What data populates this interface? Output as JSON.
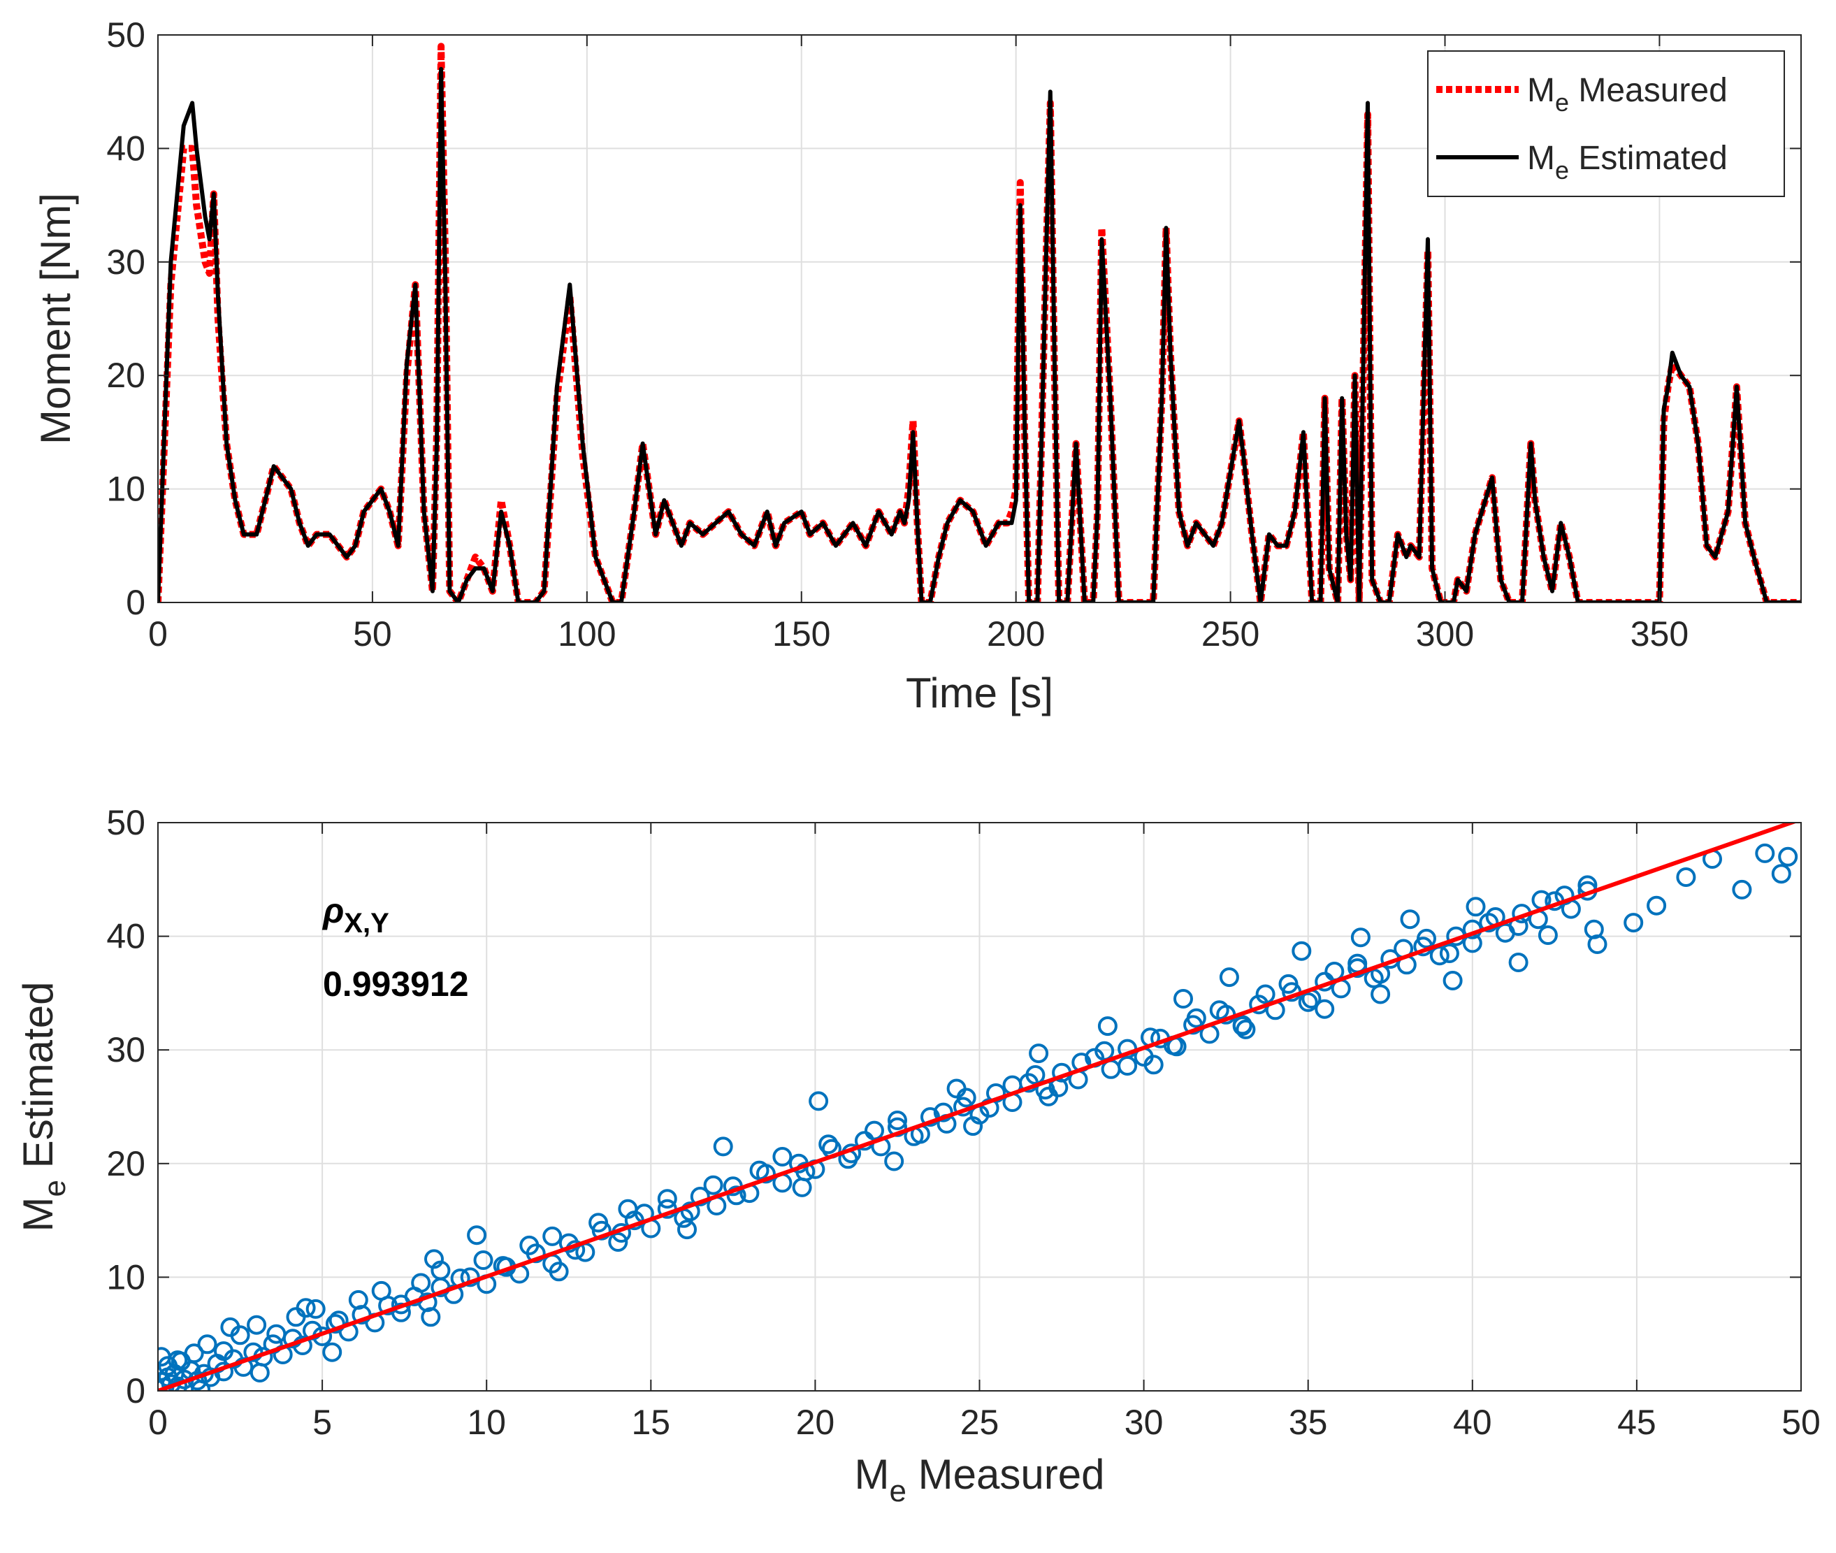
{
  "chart_data": [
    {
      "type": "line",
      "xlabel": "Time [s]",
      "ylabel": "Moment [Nm]",
      "xlim": [
        0,
        383
      ],
      "ylim": [
        0,
        50
      ],
      "xticks": [
        0,
        50,
        100,
        150,
        200,
        250,
        300,
        350
      ],
      "yticks": [
        0,
        10,
        20,
        30,
        40,
        50
      ],
      "grid": true,
      "legend_position": "top-right",
      "legend": [
        {
          "main": "M",
          "sub": "e",
          "rest": " Measured",
          "style": "dotted",
          "color": "#ff0000"
        },
        {
          "main": "M",
          "sub": "e",
          "rest": " Estimated",
          "style": "solid",
          "color": "#000000"
        }
      ],
      "series": [
        {
          "name": "Me Measured",
          "color": "#ff0000",
          "x": [
            0,
            3,
            6,
            8,
            9,
            11,
            12,
            13,
            14,
            16,
            18,
            20,
            23,
            25,
            27,
            29,
            31,
            33,
            35,
            37,
            40,
            42,
            44,
            46,
            48,
            52,
            54,
            56,
            58,
            60,
            62,
            64,
            65,
            66,
            67,
            68,
            70,
            72,
            74,
            76,
            78,
            80,
            82,
            84,
            88,
            90,
            93,
            96,
            99,
            102,
            104,
            106,
            108,
            111,
            113,
            116,
            118,
            120,
            122,
            124,
            127,
            130,
            133,
            136,
            139,
            142,
            144,
            146,
            150,
            152,
            155,
            158,
            160,
            162,
            165,
            168,
            171,
            173,
            174,
            175,
            176,
            177,
            178,
            180,
            182,
            184,
            187,
            190,
            193,
            196,
            198,
            199,
            200,
            201,
            202,
            203,
            205,
            207,
            208,
            209,
            210,
            212,
            214,
            216,
            218,
            219,
            220,
            222,
            224,
            225,
            226,
            228,
            232,
            234,
            235,
            236,
            238,
            240,
            242,
            244,
            246,
            248,
            252,
            253,
            255,
            257,
            259,
            261,
            263,
            265,
            267,
            269,
            271,
            272,
            273,
            275,
            276,
            277,
            278,
            279,
            280,
            282,
            283,
            285,
            287,
            289,
            291,
            292,
            294,
            296,
            297,
            299,
            300,
            302,
            303,
            305,
            307,
            311,
            313,
            315,
            318,
            320,
            321,
            323,
            325,
            327,
            329,
            331,
            333,
            335,
            347,
            350,
            351,
            352,
            353,
            355,
            357,
            359,
            361,
            363,
            366,
            368,
            370,
            372,
            375,
            378,
            383
          ],
          "y": [
            0,
            28,
            40,
            40,
            35,
            30,
            29,
            36,
            25,
            14,
            9,
            6,
            6,
            9,
            12,
            11,
            10,
            7,
            5,
            6,
            6,
            5,
            4,
            5,
            8,
            10,
            8,
            5,
            20,
            28,
            8,
            1,
            15,
            49,
            30,
            1,
            0,
            2,
            4,
            3,
            1,
            9,
            5,
            0,
            0,
            1,
            18,
            27,
            13,
            4,
            2,
            0,
            0,
            8,
            14,
            6,
            9,
            7,
            5,
            7,
            6,
            7,
            8,
            6,
            5,
            8,
            5,
            7,
            8,
            6,
            7,
            5,
            6,
            7,
            5,
            8,
            6,
            8,
            7,
            10,
            16,
            7,
            0,
            0,
            4,
            7,
            9,
            8,
            5,
            7,
            7,
            8,
            10,
            37,
            15,
            0,
            0,
            30,
            44,
            20,
            0,
            0,
            14,
            0,
            0,
            8,
            33,
            18,
            0,
            0,
            0,
            0,
            0,
            18,
            33,
            22,
            8,
            5,
            7,
            6,
            5,
            7,
            16,
            13,
            6,
            0,
            6,
            5,
            5,
            8,
            15,
            0,
            0,
            18,
            3,
            0,
            18,
            6,
            2,
            20,
            0,
            43,
            2,
            0,
            0,
            6,
            4,
            5,
            4,
            31,
            3,
            0,
            0,
            0,
            2,
            1,
            6,
            11,
            2,
            0,
            0,
            14,
            9,
            4,
            1,
            7,
            4,
            0,
            0,
            0,
            0,
            0,
            16,
            19,
            21,
            20,
            19,
            14,
            5,
            4,
            8,
            19,
            7,
            4,
            0,
            0,
            0
          ]
        },
        {
          "name": "Me Estimated",
          "color": "#000000",
          "x": [
            0,
            3,
            6,
            8,
            9,
            11,
            12,
            13,
            14,
            16,
            18,
            20,
            23,
            25,
            27,
            29,
            31,
            33,
            35,
            37,
            40,
            42,
            44,
            46,
            48,
            52,
            54,
            56,
            58,
            60,
            62,
            64,
            65,
            66,
            67,
            68,
            70,
            72,
            74,
            76,
            78,
            80,
            82,
            84,
            88,
            90,
            93,
            96,
            99,
            102,
            104,
            106,
            108,
            111,
            113,
            116,
            118,
            120,
            122,
            124,
            127,
            130,
            133,
            136,
            139,
            142,
            144,
            146,
            150,
            152,
            155,
            158,
            160,
            162,
            165,
            168,
            171,
            173,
            174,
            175,
            176,
            177,
            178,
            180,
            182,
            184,
            187,
            190,
            193,
            196,
            198,
            199,
            200,
            201,
            202,
            203,
            205,
            207,
            208,
            209,
            210,
            212,
            214,
            216,
            218,
            219,
            220,
            222,
            224,
            225,
            226,
            228,
            232,
            234,
            235,
            236,
            238,
            240,
            242,
            244,
            246,
            248,
            252,
            253,
            255,
            257,
            259,
            261,
            263,
            265,
            267,
            269,
            271,
            272,
            273,
            275,
            276,
            277,
            278,
            279,
            280,
            282,
            283,
            285,
            287,
            289,
            291,
            292,
            294,
            296,
            297,
            299,
            300,
            302,
            303,
            305,
            307,
            311,
            313,
            315,
            318,
            320,
            321,
            323,
            325,
            327,
            329,
            331,
            333,
            335,
            347,
            350,
            351,
            352,
            353,
            355,
            357,
            359,
            361,
            363,
            366,
            368,
            370,
            372,
            375,
            378,
            383
          ],
          "y": [
            0,
            30,
            42,
            44,
            40,
            34,
            32,
            36,
            27,
            14,
            9,
            6,
            6,
            9,
            12,
            11,
            10,
            7,
            5,
            6,
            6,
            5,
            4,
            5,
            8,
            10,
            8,
            5,
            21,
            28,
            8,
            1,
            14,
            47,
            28,
            1,
            0,
            2,
            3,
            3,
            1,
            8,
            5,
            0,
            0,
            1,
            19,
            28,
            14,
            4,
            2,
            0,
            0,
            8,
            14,
            6,
            9,
            7,
            5,
            7,
            6,
            7,
            8,
            6,
            5,
            8,
            5,
            7,
            8,
            6,
            7,
            5,
            6,
            7,
            5,
            8,
            6,
            8,
            7,
            9,
            15,
            7,
            0,
            0,
            4,
            7,
            9,
            8,
            5,
            7,
            7,
            7,
            9,
            35,
            16,
            0,
            0,
            30,
            45,
            21,
            0,
            0,
            14,
            0,
            0,
            8,
            32,
            18,
            0,
            0,
            0,
            0,
            0,
            18,
            33,
            22,
            8,
            5,
            7,
            6,
            5,
            7,
            16,
            13,
            6,
            0,
            6,
            5,
            5,
            8,
            15,
            0,
            0,
            18,
            3,
            0,
            18,
            6,
            2,
            20,
            0,
            44,
            2,
            0,
            0,
            6,
            4,
            5,
            4,
            32,
            3,
            0,
            0,
            0,
            2,
            1,
            6,
            11,
            2,
            0,
            0,
            14,
            9,
            4,
            1,
            7,
            4,
            0,
            0,
            0,
            0,
            0,
            17,
            19,
            22,
            20,
            19,
            14,
            5,
            4,
            8,
            19,
            7,
            4,
            0,
            0,
            0
          ]
        }
      ]
    },
    {
      "type": "scatter",
      "xlabel": {
        "main": "M",
        "sub": "e",
        "rest": " Measured"
      },
      "ylabel": {
        "main": "M",
        "sub": "e",
        "rest": " Estimated"
      },
      "xlim": [
        0,
        50
      ],
      "ylim": [
        0,
        50
      ],
      "xticks": [
        0,
        5,
        10,
        15,
        20,
        25,
        30,
        35,
        40,
        45,
        50
      ],
      "yticks": [
        0,
        10,
        20,
        30,
        40,
        50
      ],
      "grid": true,
      "marker": "circle-open",
      "marker_color": "#0072bd",
      "annotation": {
        "symbol": "ρ",
        "subscript": "X,Y",
        "value": "0.993912"
      },
      "fit_line": {
        "color": "#ff0000",
        "x": [
          0,
          50
        ],
        "y": [
          0,
          50.3
        ]
      },
      "x": [
        0.1,
        0.2,
        0.3,
        0.4,
        0.5,
        0.6,
        0.8,
        1.0,
        1.2,
        1.4,
        1.6,
        1.8,
        2.0,
        2.3,
        2.6,
        2.9,
        3.2,
        3.5,
        3.8,
        4.1,
        4.4,
        4.7,
        5.0,
        5.4,
        5.8,
        6.2,
        6.6,
        7.0,
        7.4,
        7.8,
        8.2,
        8.6,
        9.0,
        9.5,
        10.0,
        10.5,
        11.0,
        11.5,
        12.0,
        12.5,
        13.0,
        13.5,
        14.0,
        14.5,
        15.0,
        15.5,
        16.0,
        16.5,
        17.0,
        17.5,
        18.0,
        18.5,
        19.0,
        19.5,
        20.0,
        20.5,
        21.0,
        21.5,
        22.0,
        22.5,
        23.0,
        23.5,
        24.0,
        24.5,
        25.0,
        25.5,
        26.0,
        26.5,
        27.0,
        27.5,
        28.0,
        28.5,
        29.0,
        29.5,
        30.0,
        30.5,
        31.0,
        31.5,
        32.0,
        32.5,
        33.0,
        33.5,
        34.0,
        34.5,
        35.0,
        35.5,
        36.0,
        36.5,
        37.0,
        37.5,
        38.0,
        38.5,
        39.0,
        39.5,
        40.0,
        40.5,
        41.0,
        41.5,
        42.0,
        42.5,
        43.0,
        43.5,
        0.3,
        0.7,
        1.1,
        1.5,
        2.0,
        2.5,
        3.0,
        3.6,
        4.2,
        4.8,
        5.5,
        6.1,
        6.8,
        7.4,
        8.0,
        8.6,
        9.2,
        9.9,
        10.6,
        11.3,
        12.0,
        12.7,
        13.4,
        14.1,
        14.8,
        15.5,
        16.2,
        16.9,
        17.6,
        18.3,
        19.0,
        19.7,
        20.4,
        21.1,
        21.8,
        22.5,
        23.2,
        23.9,
        24.6,
        25.3,
        26.0,
        26.7,
        27.4,
        28.1,
        28.8,
        29.5,
        30.2,
        30.9,
        31.6,
        32.3,
        33.0,
        33.7,
        34.4,
        35.1,
        35.8,
        36.5,
        37.2,
        37.9,
        38.6,
        39.3,
        40.0,
        40.7,
        41.4,
        42.1,
        42.8,
        43.5,
        1.3,
        3.1,
        5.3,
        8.3,
        12.2,
        16.1,
        19.6,
        22.4,
        24.8,
        27.1,
        30.3,
        33.1,
        35.5,
        37.2,
        39.4,
        41.4,
        43.7,
        44.9,
        45.6,
        46.5,
        47.3,
        48.2,
        48.9,
        49.4,
        49.6,
        0.1,
        0.6,
        2.2,
        4.5,
        8.4,
        9.7,
        14.3,
        17.2,
        20.1,
        24.3,
        26.8,
        28.9,
        31.2,
        32.6,
        34.8,
        36.6,
        38.1,
        40.1,
        42.3,
        43.8
      ],
      "y": [
        0.8,
        0.3,
        1.2,
        0.6,
        1.5,
        0.4,
        1.0,
        1.8,
        0.9,
        1.5,
        1.2,
        2.4,
        1.7,
        2.8,
        2.1,
        3.4,
        3.0,
        4.1,
        3.2,
        4.6,
        4.0,
        5.3,
        4.8,
        5.9,
        5.2,
        6.7,
        6.0,
        7.5,
        6.9,
        8.3,
        7.8,
        9.1,
        8.5,
        10.0,
        9.4,
        11.0,
        10.3,
        12.1,
        11.2,
        13.0,
        12.2,
        14.1,
        13.1,
        15.0,
        14.3,
        16.0,
        15.2,
        17.1,
        16.3,
        18.0,
        17.4,
        19.1,
        18.3,
        20.0,
        19.5,
        21.3,
        20.4,
        22.0,
        21.5,
        23.2,
        22.4,
        24.1,
        23.5,
        25.0,
        24.3,
        26.2,
        25.4,
        27.1,
        26.5,
        28.0,
        27.4,
        29.3,
        28.3,
        30.1,
        29.4,
        31.0,
        30.3,
        32.2,
        31.4,
        33.1,
        32.2,
        34.0,
        33.5,
        35.1,
        34.2,
        36.0,
        35.4,
        37.2,
        36.3,
        38.0,
        37.5,
        39.1,
        38.3,
        40.0,
        39.4,
        41.2,
        40.3,
        42.0,
        41.5,
        43.1,
        42.4,
        44.0,
        2.2,
        2.6,
        3.3,
        4.1,
        3.5,
        4.9,
        5.8,
        5.0,
        6.5,
        7.2,
        6.2,
        8.0,
        8.8,
        7.6,
        9.5,
        10.6,
        9.9,
        11.5,
        10.9,
        12.8,
        13.6,
        12.4,
        14.8,
        13.9,
        15.6,
        16.9,
        15.8,
        18.1,
        17.2,
        19.4,
        20.6,
        19.3,
        21.7,
        20.9,
        22.9,
        23.8,
        22.6,
        24.5,
        25.8,
        24.9,
        26.9,
        27.8,
        26.7,
        28.9,
        29.9,
        28.6,
        31.1,
        30.4,
        32.8,
        33.5,
        32.1,
        34.9,
        35.8,
        34.5,
        36.9,
        37.6,
        36.7,
        38.9,
        39.8,
        38.5,
        40.6,
        41.7,
        40.9,
        43.2,
        43.6,
        44.5,
        0.1,
        1.6,
        3.4,
        6.5,
        10.5,
        14.2,
        17.9,
        20.2,
        23.3,
        25.9,
        28.7,
        31.8,
        33.6,
        34.9,
        36.1,
        37.7,
        40.6,
        41.2,
        42.7,
        45.2,
        46.8,
        44.1,
        47.3,
        45.5,
        47.0,
        3.0,
        2.7,
        5.6,
        7.3,
        11.6,
        13.7,
        16.0,
        21.5,
        25.5,
        26.6,
        29.7,
        32.1,
        34.5,
        36.4,
        38.7,
        39.9,
        41.5,
        42.6,
        40.1,
        39.3
      ]
    }
  ]
}
